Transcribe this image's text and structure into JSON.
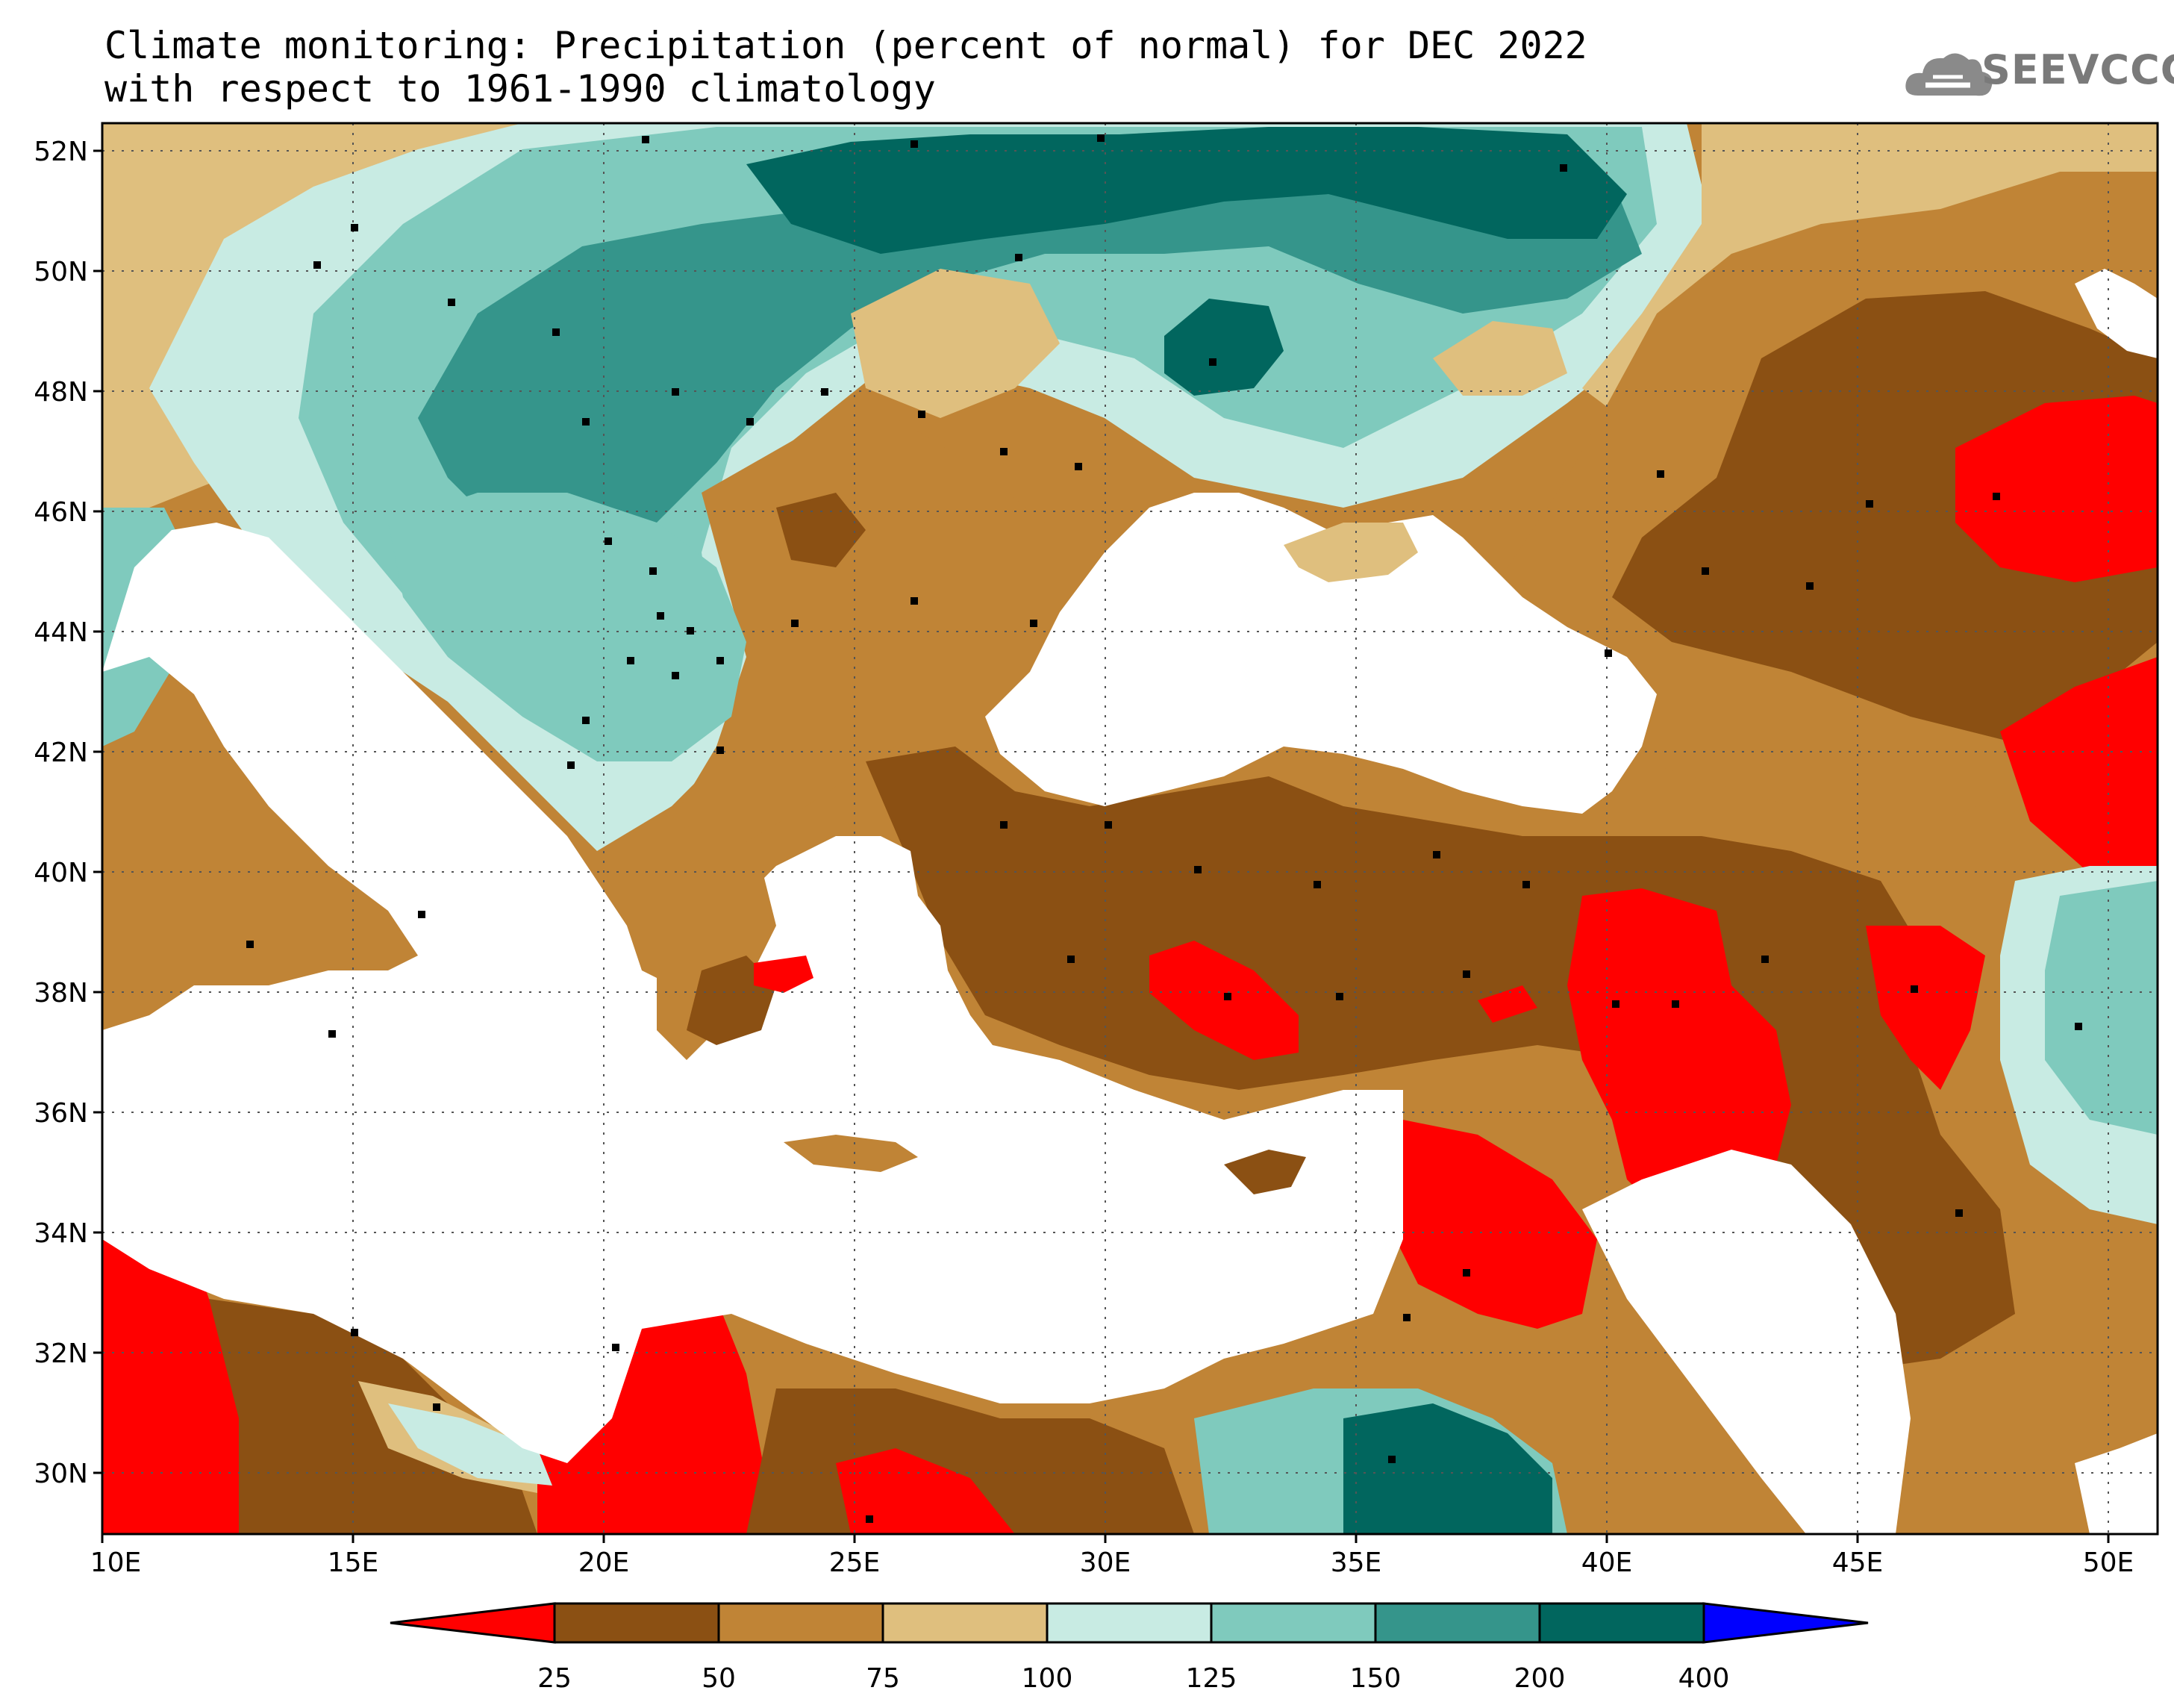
{
  "title_line1": "Climate monitoring: Precipitation (percent of normal) for DEC 2022",
  "title_line2": "with respect to 1961-1990 climatology",
  "logo_text": "SEEVCCC",
  "lat_ticks": [
    "52N",
    "50N",
    "48N",
    "46N",
    "44N",
    "42N",
    "40N",
    "38N",
    "36N",
    "34N",
    "32N",
    "30N"
  ],
  "lon_ticks": [
    "10E",
    "15E",
    "20E",
    "25E",
    "30E",
    "35E",
    "40E",
    "45E",
    "50E"
  ],
  "colorbar": {
    "colors": [
      "#ff0000",
      "#8b5013",
      "#c08436",
      "#dfbf7e",
      "#c8ebe3",
      "#7fcabd",
      "#35958b",
      "#01665e",
      "#0000ff"
    ],
    "labels": [
      "25",
      "50",
      "75",
      "100",
      "125",
      "150",
      "200",
      "400"
    ]
  },
  "map_extent": {
    "lon_min": 10,
    "lon_max": 51,
    "lat_min": 29,
    "lat_max": 52.5
  }
}
